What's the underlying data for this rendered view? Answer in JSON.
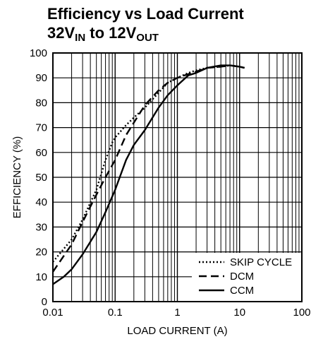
{
  "title": {
    "line1": "Efficiency vs Load Current",
    "line2_a": "32V",
    "line2_sub_a": "IN",
    "line2_b": " to 12V",
    "line2_sub_b": "OUT"
  },
  "chart_data": {
    "type": "line",
    "xscale": "log",
    "xlim": [
      0.01,
      100
    ],
    "ylim": [
      0,
      100
    ],
    "xlabel": "LOAD CURRENT (A)",
    "ylabel": "EFFICIENCY (%)",
    "xticks": [
      "0.01",
      "0.1",
      "1",
      "10",
      "100"
    ],
    "yticks": [
      "0",
      "10",
      "20",
      "30",
      "40",
      "50",
      "60",
      "70",
      "80",
      "90",
      "100"
    ],
    "grid": true,
    "legend_position": "bottom-right",
    "series": [
      {
        "name": "SKIP CYCLE",
        "style": "dotted",
        "x": [
          0.01,
          0.02,
          0.03,
          0.05,
          0.07,
          0.09,
          0.1,
          0.15,
          0.2,
          0.3,
          0.5,
          0.7,
          1,
          1.5,
          2,
          3,
          5,
          7,
          10,
          12
        ],
        "y": [
          16,
          25,
          33,
          45,
          57,
          64,
          66,
          71,
          74,
          78,
          84,
          88,
          90,
          92,
          93,
          94,
          94.5,
          95,
          94.5,
          94
        ]
      },
      {
        "name": "DCM",
        "style": "dashed",
        "x": [
          0.01,
          0.02,
          0.03,
          0.05,
          0.07,
          0.1,
          0.15,
          0.2,
          0.3,
          0.5,
          0.7,
          1,
          1.5,
          2,
          3,
          5,
          7,
          10,
          12
        ],
        "y": [
          12,
          23,
          32,
          43,
          50,
          57,
          67,
          72,
          79,
          85,
          88,
          90,
          91.5,
          92.5,
          94,
          94.5,
          95,
          94.5,
          94
        ]
      },
      {
        "name": "CCM",
        "style": "solid",
        "x": [
          0.01,
          0.015,
          0.02,
          0.03,
          0.05,
          0.07,
          0.1,
          0.15,
          0.2,
          0.3,
          0.5,
          0.7,
          1,
          1.5,
          2,
          3,
          5,
          7,
          10,
          12
        ],
        "y": [
          7,
          10,
          13,
          19,
          28,
          36,
          45,
          57,
          63,
          69,
          78,
          83,
          87,
          91,
          92,
          94,
          95,
          95,
          94.5,
          94
        ]
      }
    ]
  }
}
